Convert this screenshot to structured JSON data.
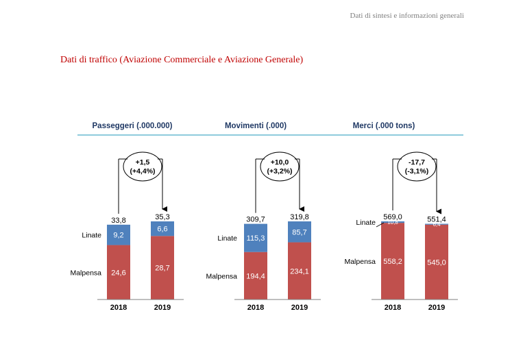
{
  "header_note": "Dati di sintesi e informazioni generali",
  "section_title": "Dati di traffico (Aviazione Commerciale e Aviazione Generale)",
  "colors": {
    "linate": "#4f81bd",
    "malpensa": "#c0504d",
    "title": "#1f3864",
    "rule": "#4bacc6",
    "heading": "#c00000"
  },
  "chart_data": [
    {
      "type": "bar",
      "stacked": true,
      "title": "Passeggeri (.000.000)",
      "categories": [
        "2018",
        "2019"
      ],
      "series": [
        {
          "name": "Malpensa",
          "values": [
            24.6,
            28.7
          ],
          "labels": [
            "24,6",
            "28,7"
          ]
        },
        {
          "name": "Linate",
          "values": [
            9.2,
            6.6
          ],
          "labels": [
            "9,2",
            "6,6"
          ]
        }
      ],
      "totals": [
        "33,8",
        "35,3"
      ],
      "delta": [
        "+1,5",
        "(+4,4%)"
      ]
    },
    {
      "type": "bar",
      "stacked": true,
      "title": "Movimenti (.000)",
      "categories": [
        "2018",
        "2019"
      ],
      "series": [
        {
          "name": "Malpensa",
          "values": [
            194.4,
            234.1
          ],
          "labels": [
            "194,4",
            "234,1"
          ]
        },
        {
          "name": "Linate",
          "values": [
            115.3,
            85.7
          ],
          "labels": [
            "115,3",
            "85,7"
          ]
        }
      ],
      "totals": [
        "309,7",
        "319,8"
      ],
      "delta": [
        "+10,0",
        "(+3,2%)"
      ]
    },
    {
      "type": "bar",
      "stacked": true,
      "title": "Merci (.000 tons)",
      "categories": [
        "2018",
        "2019"
      ],
      "series": [
        {
          "name": "Malpensa",
          "values": [
            558.2,
            545.0
          ],
          "labels": [
            "558,2",
            "545,0"
          ]
        },
        {
          "name": "Linate",
          "values": [
            10.8,
            6.4
          ],
          "labels": [
            "10,8",
            "6,4"
          ]
        }
      ],
      "totals": [
        "569,0",
        "551,4"
      ],
      "delta": [
        "-17,7",
        "(-3,1%)"
      ]
    }
  ]
}
